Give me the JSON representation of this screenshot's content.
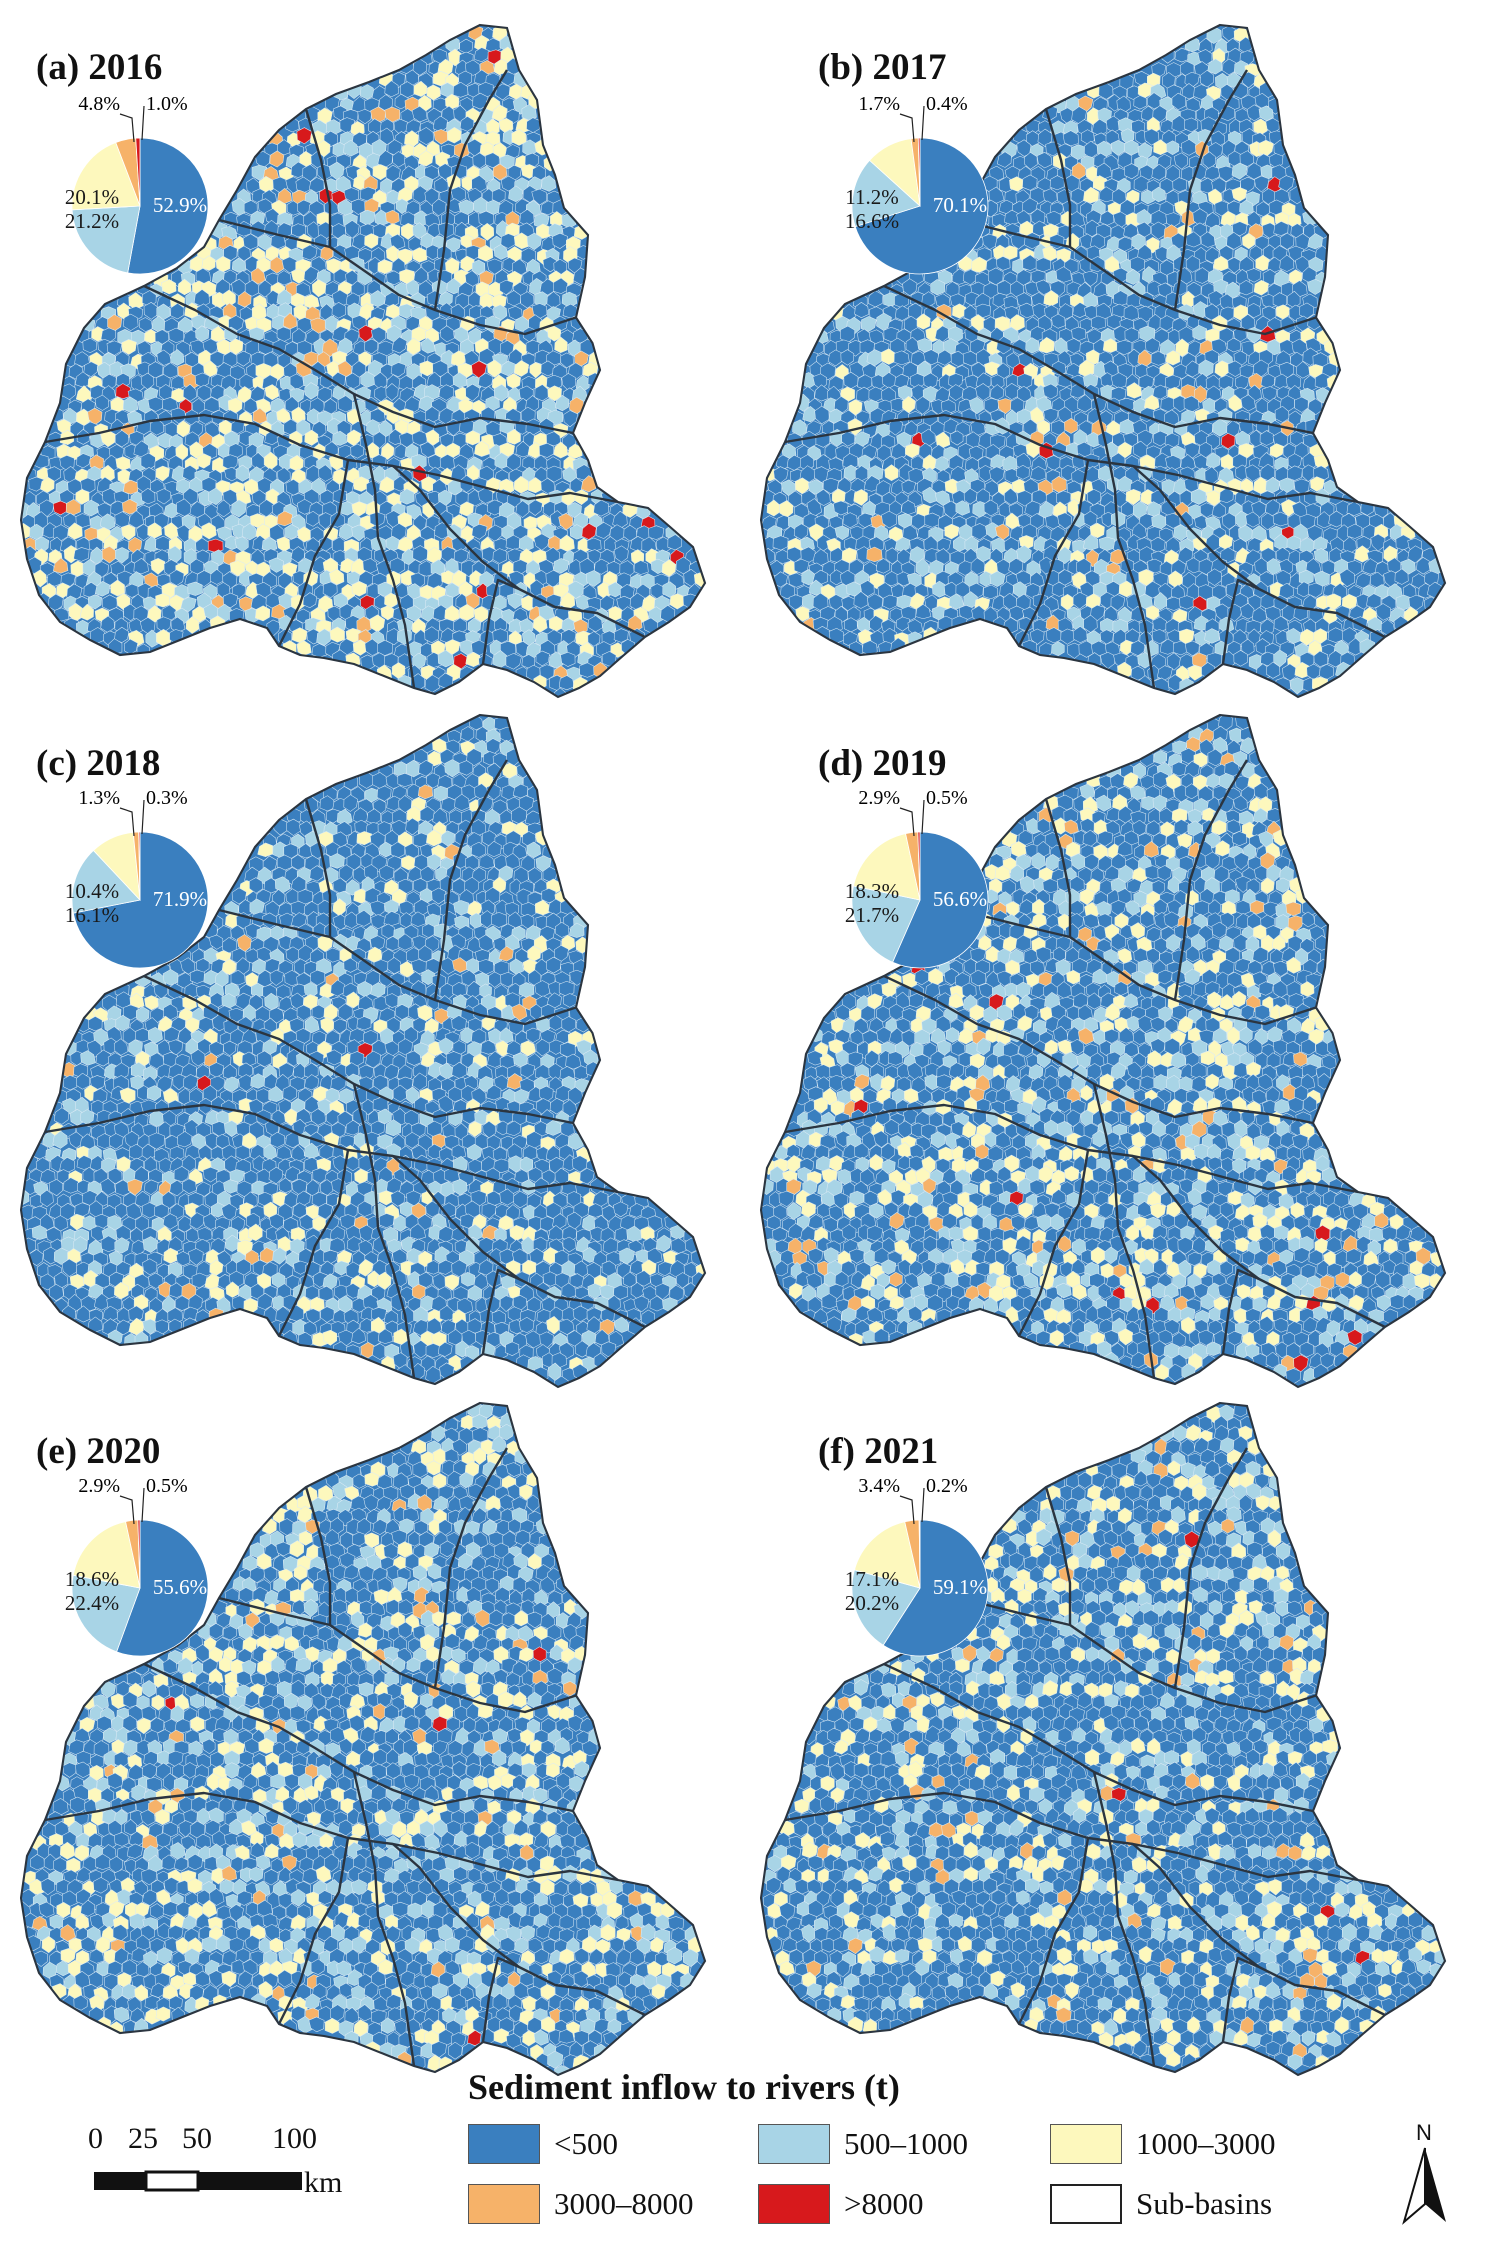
{
  "colors": {
    "lt500": "#3a7fbf",
    "r500_1000": "#a8d4e6",
    "r1000_3000": "#fdf8bd",
    "r3000_8000": "#f6b269",
    "gt8000": "#d7191c"
  },
  "panels": [
    {
      "label": "(a) 2016",
      "pie": {
        "lt500": "52.9%",
        "r500_1000": "21.2%",
        "r1000_3000": "20.1%",
        "r3000_8000": "4.8%",
        "gt8000": "1.0%"
      },
      "shares": [
        52.9,
        21.2,
        20.1,
        4.8,
        1.0
      ]
    },
    {
      "label": "(b) 2017",
      "pie": {
        "lt500": "70.1%",
        "r500_1000": "16.6%",
        "r1000_3000": "11.2%",
        "r3000_8000": "1.7%",
        "gt8000": "0.4%"
      },
      "shares": [
        70.1,
        16.6,
        11.2,
        1.7,
        0.4
      ]
    },
    {
      "label": "(c) 2018",
      "pie": {
        "lt500": "71.9%",
        "r500_1000": "16.1%",
        "r1000_3000": "10.4%",
        "r3000_8000": "1.3%",
        "gt8000": "0.3%"
      },
      "shares": [
        71.9,
        16.1,
        10.4,
        1.3,
        0.3
      ]
    },
    {
      "label": "(d) 2019",
      "pie": {
        "lt500": "56.6%",
        "r500_1000": "21.7%",
        "r1000_3000": "18.3%",
        "r3000_8000": "2.9%",
        "gt8000": "0.5%"
      },
      "shares": [
        56.6,
        21.7,
        18.3,
        2.9,
        0.5
      ]
    },
    {
      "label": "(e) 2020",
      "pie": {
        "lt500": "55.6%",
        "r500_1000": "22.4%",
        "r1000_3000": "18.6%",
        "r3000_8000": "2.9%",
        "gt8000": "0.5%"
      },
      "shares": [
        55.6,
        22.4,
        18.6,
        2.9,
        0.5
      ]
    },
    {
      "label": "(f) 2021",
      "pie": {
        "lt500": "59.1%",
        "r500_1000": "20.2%",
        "r1000_3000": "17.1%",
        "r3000_8000": "3.4%",
        "gt8000": "0.2%"
      },
      "shares": [
        59.1,
        20.2,
        17.1,
        3.4,
        0.2
      ]
    }
  ],
  "legend": {
    "title": "Sediment inflow to rivers (t)",
    "items": [
      {
        "key": "lt500",
        "label": "<500"
      },
      {
        "key": "r500_1000",
        "label": "500–1000"
      },
      {
        "key": "r1000_3000",
        "label": "1000–3000"
      },
      {
        "key": "r3000_8000",
        "label": "3000–8000"
      },
      {
        "key": "gt8000",
        "label": ">8000"
      },
      {
        "key": "subbasins",
        "label": "Sub-basins"
      }
    ]
  },
  "scalebar": {
    "ticks": [
      "0",
      "25",
      "50",
      "100"
    ],
    "unit": "km"
  },
  "north_arrow": {
    "label": "N"
  }
}
